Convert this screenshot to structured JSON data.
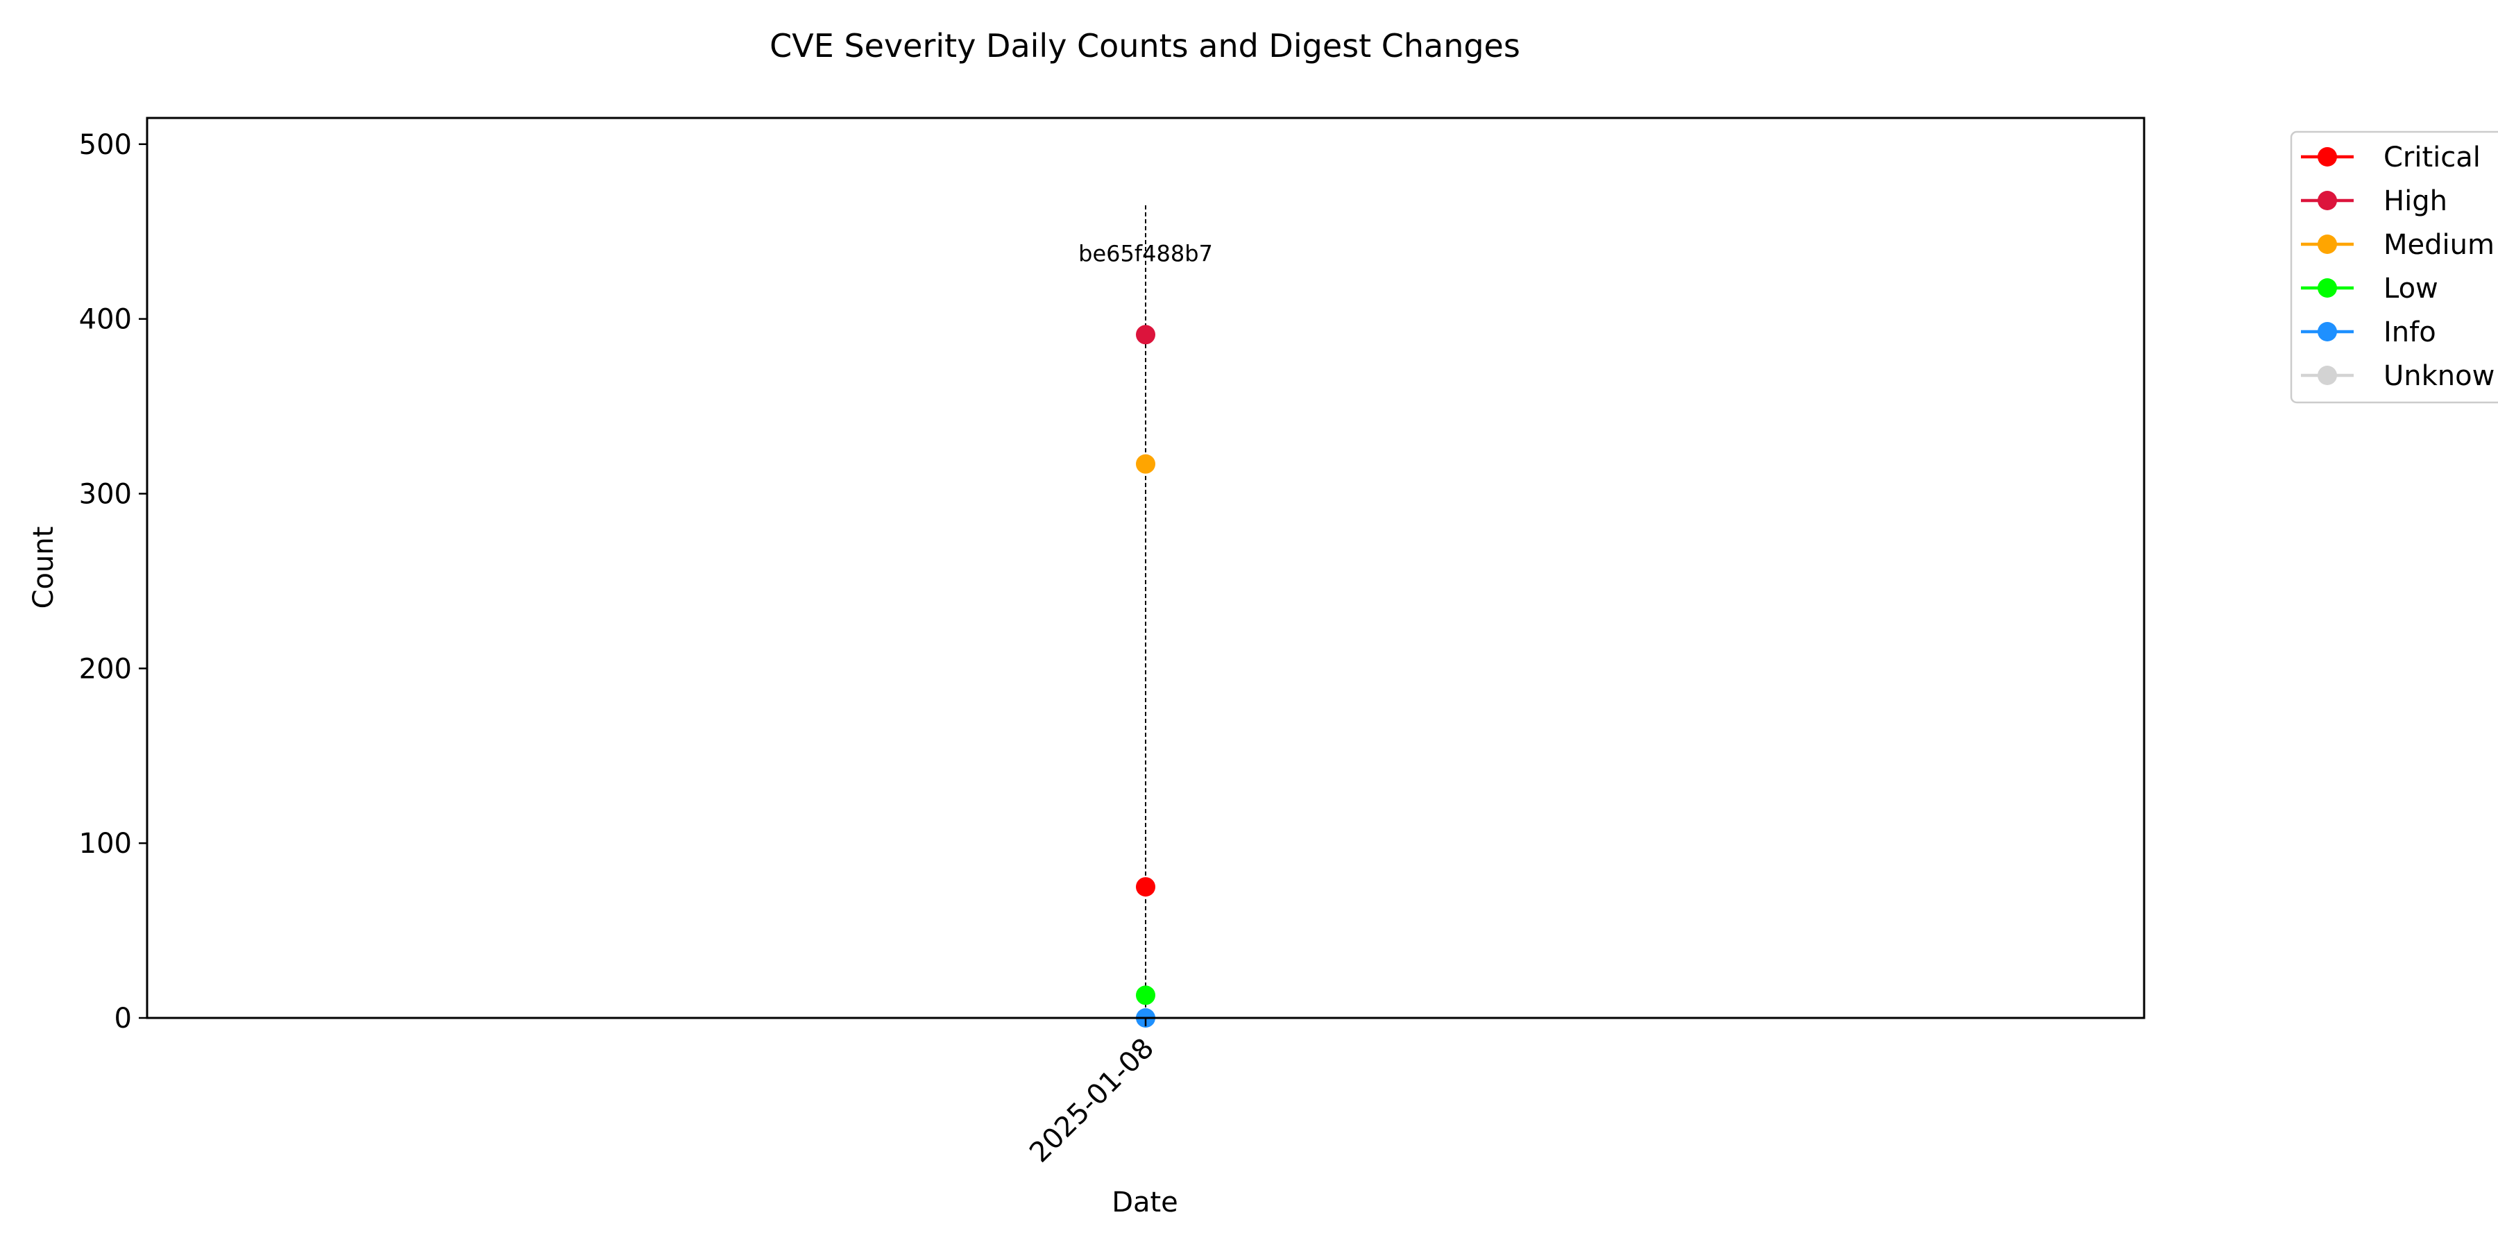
{
  "chart_data": {
    "type": "line",
    "title": "CVE Severity Daily Counts and Digest Changes",
    "xlabel": "Date",
    "ylabel": "Count",
    "x": [
      "2025-01-08"
    ],
    "ylim": [
      0,
      515
    ],
    "yticks": [
      0,
      100,
      200,
      300,
      400,
      500
    ],
    "grid": false,
    "legend_position": "outside-top-right",
    "series": [
      {
        "name": "Critical",
        "color": "#ff0000",
        "values": [
          75
        ]
      },
      {
        "name": "High",
        "color": "#dc143c",
        "values": [
          391
        ]
      },
      {
        "name": "Medium",
        "color": "#ffa500",
        "values": [
          317
        ]
      },
      {
        "name": "Low",
        "color": "#00ff00",
        "values": [
          13
        ]
      },
      {
        "name": "Info",
        "color": "#1e90ff",
        "values": [
          0
        ]
      },
      {
        "name": "Unknown",
        "color": "#d3d3d3",
        "values": [
          0
        ]
      }
    ],
    "legend_labels": [
      "Critical",
      "High",
      "Medium",
      "Low",
      "Info",
      "Unknow"
    ],
    "annotations": [
      {
        "x": "2025-01-08",
        "label": "be65f488b7",
        "style": "dashed-vertical-line"
      }
    ]
  }
}
